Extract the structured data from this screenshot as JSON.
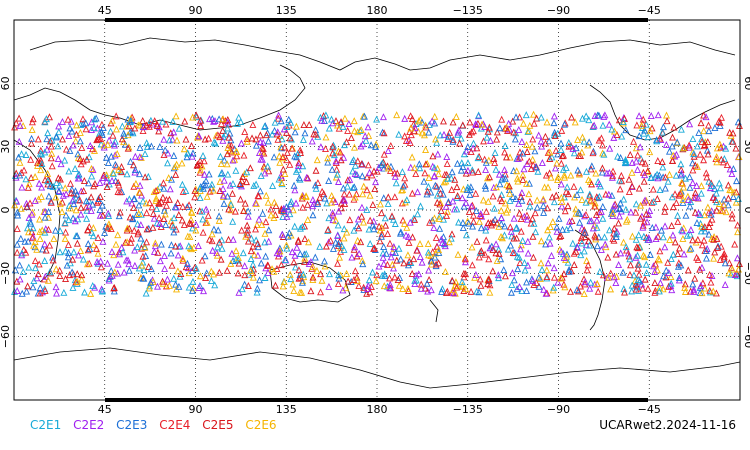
{
  "map": {
    "projection": "cylindrical, centered on 180",
    "lon_range": [
      0,
      360
    ],
    "lat_range": [
      -90,
      90
    ],
    "top_lon_labels": [
      "45",
      "90",
      "135",
      "180",
      "−135",
      "−90",
      "−45"
    ],
    "bottom_lon_labels": [
      "45",
      "90",
      "135",
      "180",
      "−135",
      "−90",
      "−45"
    ],
    "lat_labels_left": [
      "60",
      "30",
      "0",
      "−30",
      "−60"
    ],
    "lat_labels_right": [
      "60",
      "30",
      "0",
      "−30",
      "−60"
    ],
    "occultation_lat_band": [
      -40,
      45
    ],
    "marker_shape": "open triangle"
  },
  "legend": [
    {
      "label": "C2E1",
      "color": "#19aad8"
    },
    {
      "label": "C2E2",
      "color": "#a020f0"
    },
    {
      "label": "C2E3",
      "color": "#1c6fd6"
    },
    {
      "label": "C2E4",
      "color": "#e8202a"
    },
    {
      "label": "C2E5",
      "color": "#d9161c"
    },
    {
      "label": "C2E6",
      "color": "#f5b400"
    }
  ],
  "footer": "UCARwet2.2024-11-16"
}
